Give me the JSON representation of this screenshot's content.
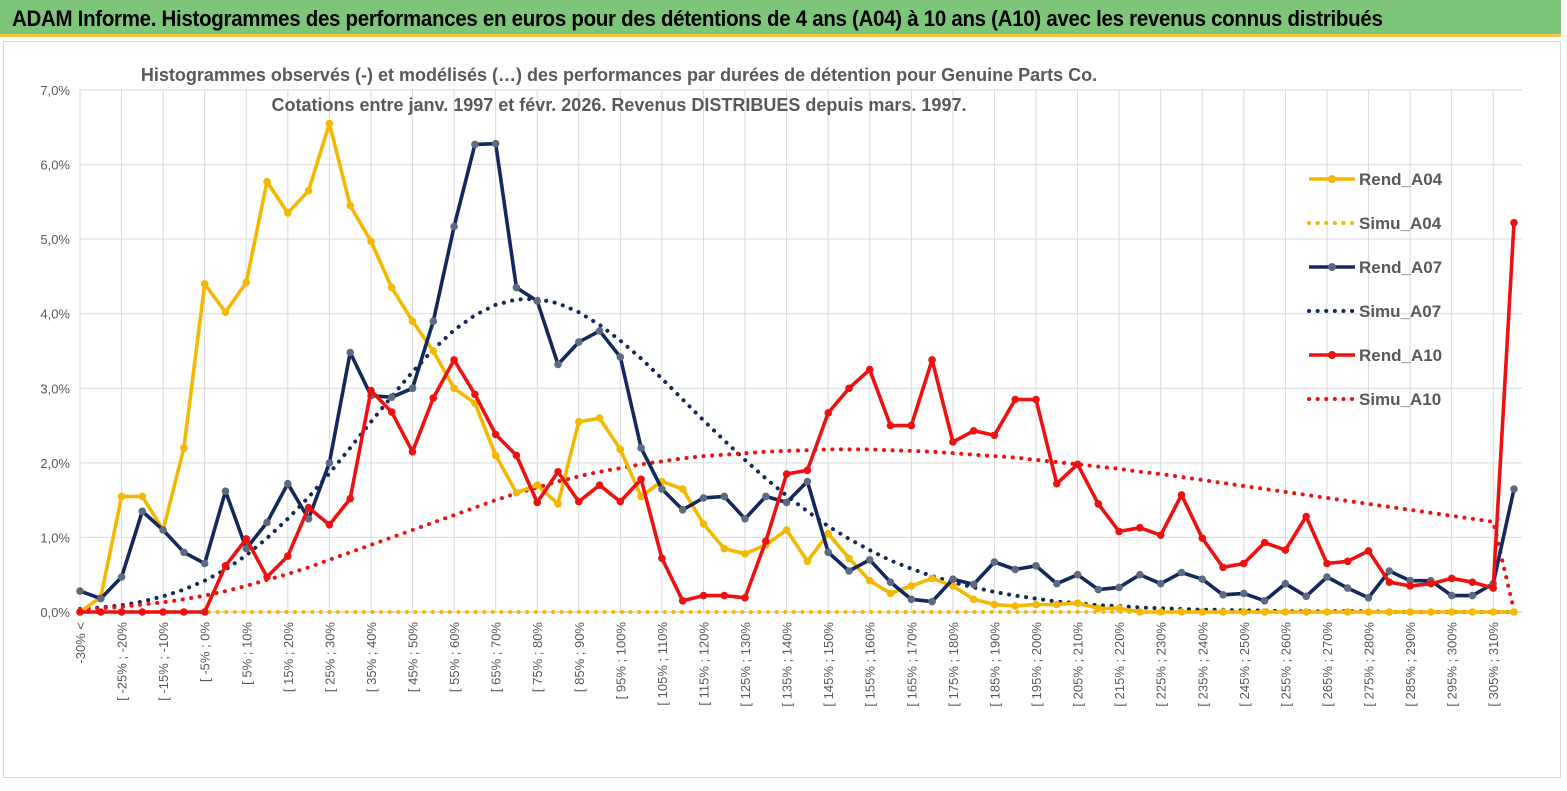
{
  "banner": {
    "title": "ADAM Informe. Histogrammes des performances en euros pour des détentions de 4 ans (A04) à 10 ans (A10) avec les revenus connus distribués"
  },
  "chart_data": {
    "type": "line",
    "title_line1": "Histogrammes observés (-) et modélisés (…) des performances par durées de détention pour Genuine Parts Co.",
    "title_line2": "Cotations entre janv. 1997 et févr. 2026. Revenus DISTRIBUES depuis mars. 1997.",
    "ylim": [
      0,
      7
    ],
    "yticks": [
      "0,0%",
      "1,0%",
      "2,0%",
      "3,0%",
      "4,0%",
      "5,0%",
      "6,0%",
      "7,0%"
    ],
    "x_labels": [
      "-30% <",
      "[ -25% ; -20%",
      "[ -15% ; -10%",
      "[ -5% ; 0%",
      "[ 5% ; 10%",
      "[ 15% ; 20%",
      "[ 25% ; 30%",
      "[ 35% ; 40%",
      "[ 45% ; 50%",
      "[ 55% ; 60%",
      "[ 65% ; 70%",
      "[ 75% ; 80%",
      "[ 85% ; 90%",
      "[ 95% ; 100%",
      "[ 105% ; 110%",
      "[ 115% ; 120%",
      "[ 125% ; 130%",
      "[ 135% ; 140%",
      "[ 145% ; 150%",
      "[ 155% ; 160%",
      "[ 165% ; 170%",
      "[ 175% ; 180%",
      "[ 185% ; 190%",
      "[ 195% ; 200%",
      "[ 205% ; 210%",
      "[ 215% ; 220%",
      "[ 225% ; 230%",
      "[ 235% ; 240%",
      "[ 245% ; 250%",
      "[ 255% ; 260%",
      "[ 265% ; 270%",
      "[ 275% ; 280%",
      "[ 285% ; 290%",
      "[ 295% ; 300%",
      "[ 305% ; 310%"
    ],
    "n_points": 70,
    "series": [
      {
        "name": "Rend_A04",
        "color": "#f5b800",
        "style": "solid",
        "marker": true,
        "values": [
          0,
          0.2,
          1.55,
          1.55,
          1.1,
          2.2,
          4.4,
          4.02,
          4.42,
          5.77,
          5.35,
          5.65,
          6.55,
          5.45,
          4.97,
          4.35,
          3.9,
          3.5,
          3.0,
          2.8,
          2.1,
          1.6,
          1.7,
          1.45,
          2.55,
          2.6,
          2.18,
          1.55,
          1.75,
          1.65,
          1.18,
          0.85,
          0.78,
          0.9,
          1.1,
          0.68,
          1.05,
          0.72,
          0.42,
          0.25,
          0.35,
          0.45,
          0.35,
          0.17,
          0.1,
          0.08,
          0.1,
          0.1,
          0.12,
          0.05,
          0.05,
          0,
          0,
          0,
          0,
          0,
          0,
          0,
          0,
          0,
          0,
          0,
          0,
          0,
          0,
          0,
          0,
          0,
          0,
          0
        ]
      },
      {
        "name": "Simu_A04",
        "color": "#f5b800",
        "style": "dotted",
        "marker": false,
        "values": [
          0,
          0,
          0,
          0,
          0,
          0,
          0,
          0,
          0,
          0,
          0,
          0,
          0,
          0,
          0,
          0,
          0,
          0,
          0,
          0,
          0,
          0,
          0,
          0,
          0,
          0,
          0,
          0,
          0,
          0,
          0,
          0,
          0,
          0,
          0,
          0,
          0,
          0,
          0,
          0,
          0,
          0,
          0,
          0,
          0,
          0,
          0,
          0,
          0,
          0,
          0,
          0,
          0,
          0,
          0,
          0,
          0,
          0,
          0,
          0,
          0,
          0,
          0,
          0,
          0,
          0,
          0,
          0,
          0,
          0
        ]
      },
      {
        "name": "Rend_A07",
        "color": "#13285c",
        "style": "solid",
        "marker": true,
        "values": [
          0.28,
          0.18,
          0.47,
          1.35,
          1.1,
          0.8,
          0.65,
          1.62,
          0.85,
          1.2,
          1.72,
          1.25,
          2.0,
          3.48,
          2.9,
          2.88,
          3.0,
          3.9,
          5.17,
          6.27,
          6.28,
          4.35,
          4.17,
          3.32,
          3.62,
          3.77,
          3.42,
          2.2,
          1.65,
          1.37,
          1.53,
          1.55,
          1.25,
          1.55,
          1.47,
          1.75,
          0.8,
          0.55,
          0.7,
          0.4,
          0.17,
          0.14,
          0.44,
          0.37,
          0.67,
          0.57,
          0.62,
          0.38,
          0.5,
          0.3,
          0.33,
          0.5,
          0.38,
          0.53,
          0.44,
          0.23,
          0.25,
          0.15,
          0.38,
          0.21,
          0.47,
          0.32,
          0.19,
          0.55,
          0.42,
          0.42,
          0.22,
          0.22,
          0.38,
          1.65
        ]
      },
      {
        "name": "Simu_A07",
        "color": "#13285c",
        "style": "dotted",
        "marker": false,
        "values": [
          0.04,
          0.06,
          0.09,
          0.14,
          0.21,
          0.3,
          0.42,
          0.57,
          0.76,
          0.99,
          1.25,
          1.54,
          1.86,
          2.2,
          2.55,
          2.89,
          3.22,
          3.52,
          3.78,
          3.98,
          4.12,
          4.19,
          4.2,
          4.14,
          4.02,
          3.85,
          3.64,
          3.4,
          3.13,
          2.85,
          2.57,
          2.3,
          2.04,
          1.79,
          1.56,
          1.35,
          1.15,
          0.98,
          0.83,
          0.69,
          0.58,
          0.48,
          0.4,
          0.33,
          0.27,
          0.22,
          0.18,
          0.14,
          0.12,
          0.09,
          0.08,
          0.06,
          0.05,
          0.04,
          0.03,
          0.03,
          0.02,
          0.02,
          0.01,
          0.01,
          0.01,
          0.01,
          0.01,
          0.0,
          0.0,
          0.0,
          0.0,
          0.0,
          0.0,
          0.0
        ]
      },
      {
        "name": "Rend_A10",
        "color": "#ee1111",
        "style": "solid",
        "marker": true,
        "values": [
          0,
          0,
          0,
          0,
          0,
          0,
          0,
          0.62,
          0.98,
          0.47,
          0.75,
          1.4,
          1.17,
          1.52,
          2.97,
          2.68,
          2.15,
          2.87,
          3.38,
          2.92,
          2.38,
          2.1,
          1.47,
          1.88,
          1.48,
          1.7,
          1.48,
          1.78,
          0.72,
          0.15,
          0.22,
          0.22,
          0.19,
          0.95,
          1.85,
          1.9,
          2.67,
          3.0,
          3.25,
          2.5,
          2.5,
          3.38,
          2.28,
          2.43,
          2.37,
          2.85,
          2.85,
          1.72,
          1.98,
          1.45,
          1.08,
          1.13,
          1.03,
          1.57,
          0.99,
          0.6,
          0.65,
          0.93,
          0.83,
          1.28,
          0.65,
          0.68,
          0.82,
          0.4,
          0.35,
          0.38,
          0.45,
          0.4,
          0.32,
          5.22
        ]
      },
      {
        "name": "Simu_A10",
        "color": "#ee1111",
        "style": "dotted",
        "marker": false,
        "values": [
          0.03,
          0.05,
          0.07,
          0.1,
          0.13,
          0.17,
          0.22,
          0.28,
          0.35,
          0.43,
          0.51,
          0.6,
          0.7,
          0.8,
          0.9,
          1.0,
          1.1,
          1.2,
          1.3,
          1.4,
          1.5,
          1.59,
          1.67,
          1.75,
          1.82,
          1.88,
          1.93,
          1.98,
          2.02,
          2.06,
          2.09,
          2.11,
          2.13,
          2.15,
          2.16,
          2.17,
          2.18,
          2.18,
          2.18,
          2.17,
          2.16,
          2.15,
          2.13,
          2.11,
          2.09,
          2.07,
          2.04,
          2.01,
          1.98,
          1.95,
          1.92,
          1.88,
          1.85,
          1.81,
          1.77,
          1.73,
          1.69,
          1.65,
          1.61,
          1.57,
          1.53,
          1.49,
          1.45,
          1.41,
          1.37,
          1.33,
          1.29,
          1.25,
          1.21,
          0.02
        ]
      }
    ]
  }
}
